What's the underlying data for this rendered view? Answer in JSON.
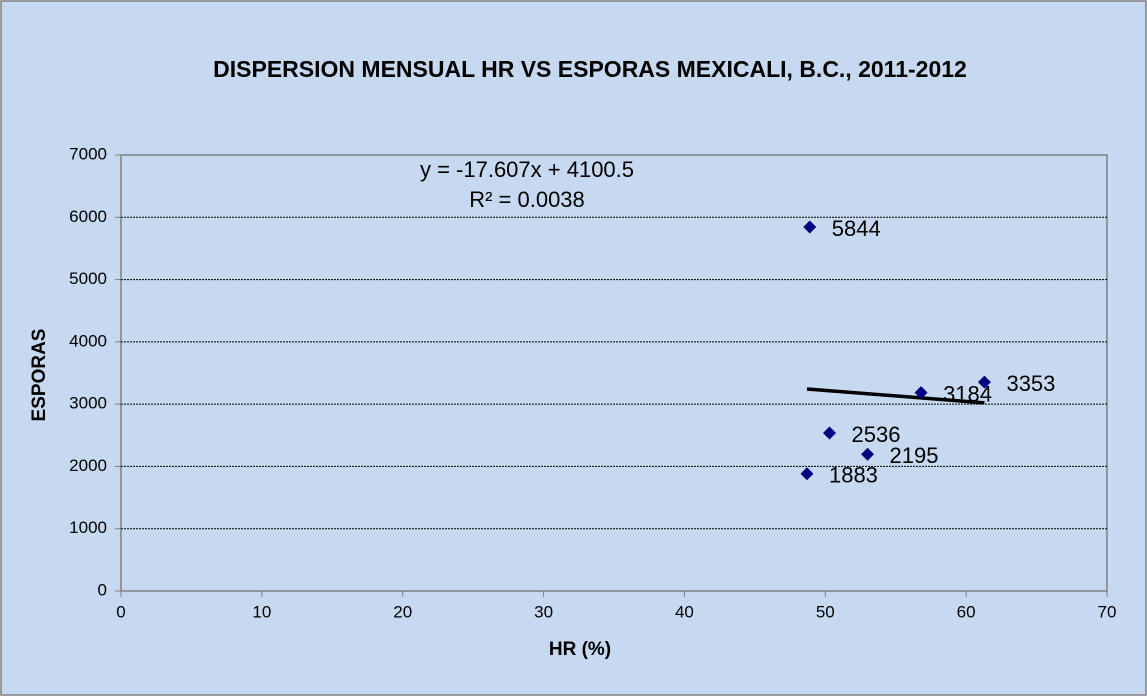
{
  "chart_data": {
    "type": "scatter",
    "title": "DISPERSION MENSUAL HR VS ESPORAS MEXICALI, B.C., 2011-2012",
    "xlabel": "HR (%)",
    "ylabel": "ESPORAS",
    "x": [
      48.9,
      56.8,
      61.3,
      50.3,
      53.0,
      48.7
    ],
    "values": [
      5844,
      3184,
      3353,
      2536,
      2195,
      1883
    ],
    "color": "#000080",
    "xlim": [
      0,
      70
    ],
    "xticks": [
      0,
      10,
      20,
      30,
      40,
      50,
      60,
      70
    ],
    "ylim": [
      0,
      7000
    ],
    "yticks": [
      0,
      1000,
      2000,
      3000,
      4000,
      5000,
      6000,
      7000
    ],
    "grid": true,
    "trendline": {
      "slope": -17.607,
      "intercept": 4100.5,
      "label": "y = -17.607x + 4100.5",
      "r2": 0.0038,
      "r2_label": "R² = 0.0038"
    }
  }
}
